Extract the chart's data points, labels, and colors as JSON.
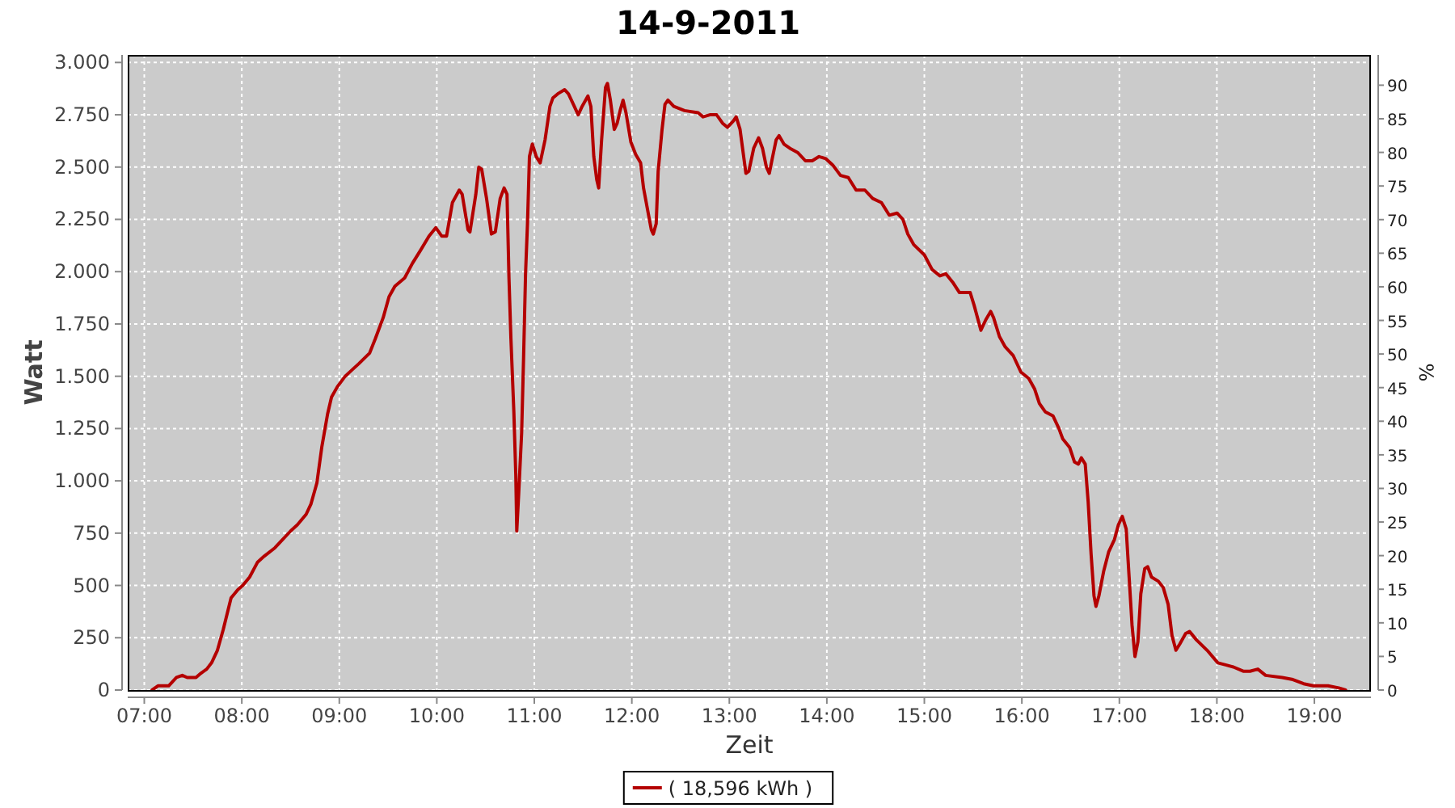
{
  "chart_data": {
    "type": "line",
    "title": "14-9-2011",
    "xlabel": "Zeit",
    "ylabel": "Watt",
    "y2label": "%",
    "x": [
      7.08,
      7.14,
      7.25,
      7.33,
      7.39,
      7.44,
      7.53,
      7.58,
      7.64,
      7.69,
      7.75,
      7.81,
      7.89,
      7.96,
      8.01,
      8.08,
      8.16,
      8.23,
      8.34,
      8.4,
      8.5,
      8.57,
      8.66,
      8.71,
      8.77,
      8.82,
      8.88,
      8.92,
      8.98,
      9.06,
      9.13,
      9.2,
      9.31,
      9.37,
      9.45,
      9.51,
      9.57,
      9.67,
      9.75,
      9.83,
      9.92,
      9.99,
      10.05,
      10.1,
      10.16,
      10.23,
      10.26,
      10.32,
      10.34,
      10.4,
      10.43,
      10.46,
      10.51,
      10.56,
      10.6,
      10.65,
      10.69,
      10.72,
      10.74,
      10.76,
      10.79,
      10.81,
      10.82,
      10.84,
      10.87,
      10.89,
      10.91,
      10.93,
      10.95,
      10.98,
      11.02,
      11.06,
      11.11,
      11.16,
      11.19,
      11.24,
      11.31,
      11.35,
      11.41,
      11.45,
      11.49,
      11.55,
      11.58,
      11.61,
      11.64,
      11.66,
      11.69,
      11.73,
      11.75,
      11.78,
      11.82,
      11.85,
      11.88,
      11.91,
      11.94,
      11.99,
      12.04,
      12.09,
      12.12,
      12.16,
      12.2,
      12.22,
      12.25,
      12.27,
      12.31,
      12.34,
      12.37,
      12.43,
      12.54,
      12.68,
      12.73,
      12.8,
      12.87,
      12.93,
      12.98,
      13.04,
      13.07,
      13.11,
      13.15,
      13.17,
      13.2,
      13.25,
      13.3,
      13.34,
      13.38,
      13.41,
      13.44,
      13.48,
      13.51,
      13.56,
      13.62,
      13.7,
      13.78,
      13.85,
      13.92,
      13.99,
      14.06,
      14.14,
      14.22,
      14.3,
      14.39,
      14.47,
      14.56,
      14.64,
      14.72,
      14.78,
      14.83,
      14.89,
      15.0,
      15.08,
      15.16,
      15.22,
      15.29,
      15.36,
      15.47,
      15.51,
      15.58,
      15.63,
      15.68,
      15.71,
      15.77,
      15.83,
      15.91,
      15.99,
      16.07,
      16.13,
      16.18,
      16.24,
      16.32,
      16.38,
      16.42,
      16.49,
      16.54,
      16.58,
      16.61,
      16.65,
      16.68,
      16.71,
      16.74,
      16.76,
      16.79,
      16.84,
      16.89,
      16.95,
      16.99,
      17.03,
      17.07,
      17.1,
      17.13,
      17.16,
      17.19,
      17.22,
      17.26,
      17.29,
      17.33,
      17.4,
      17.45,
      17.5,
      17.54,
      17.58,
      17.62,
      17.68,
      17.72,
      17.79,
      17.9,
      18.01,
      18.09,
      18.17,
      18.27,
      18.34,
      18.42,
      18.5,
      18.67,
      18.78,
      18.89,
      18.99,
      19.14,
      19.25,
      19.32
    ],
    "series": [
      {
        "name": "( 18,596 kWh )",
        "color": "#b40000",
        "values": [
          0,
          20,
          20,
          60,
          70,
          60,
          60,
          80,
          100,
          130,
          190,
          290,
          440,
          480,
          500,
          540,
          610,
          640,
          680,
          710,
          760,
          790,
          840,
          890,
          990,
          1160,
          1320,
          1400,
          1450,
          1500,
          1530,
          1560,
          1610,
          1680,
          1780,
          1880,
          1930,
          1970,
          2040,
          2100,
          2170,
          2210,
          2170,
          2170,
          2330,
          2390,
          2370,
          2200,
          2190,
          2370,
          2500,
          2490,
          2350,
          2180,
          2190,
          2350,
          2400,
          2370,
          1970,
          1680,
          1330,
          1030,
          760,
          940,
          1230,
          1590,
          1990,
          2230,
          2550,
          2610,
          2550,
          2520,
          2630,
          2790,
          2830,
          2850,
          2870,
          2850,
          2790,
          2750,
          2790,
          2840,
          2790,
          2550,
          2440,
          2400,
          2630,
          2880,
          2900,
          2820,
          2680,
          2710,
          2770,
          2820,
          2760,
          2620,
          2560,
          2520,
          2400,
          2300,
          2200,
          2180,
          2230,
          2480,
          2680,
          2800,
          2820,
          2790,
          2770,
          2760,
          2740,
          2750,
          2750,
          2710,
          2690,
          2720,
          2740,
          2680,
          2540,
          2470,
          2480,
          2590,
          2640,
          2590,
          2500,
          2470,
          2540,
          2630,
          2650,
          2610,
          2590,
          2570,
          2530,
          2530,
          2550,
          2540,
          2510,
          2460,
          2450,
          2390,
          2390,
          2350,
          2330,
          2270,
          2280,
          2250,
          2180,
          2130,
          2080,
          2010,
          1980,
          1990,
          1950,
          1900,
          1900,
          1840,
          1720,
          1770,
          1810,
          1780,
          1690,
          1640,
          1600,
          1520,
          1490,
          1440,
          1370,
          1330,
          1310,
          1250,
          1200,
          1160,
          1090,
          1080,
          1110,
          1080,
          900,
          650,
          450,
          400,
          450,
          570,
          660,
          720,
          790,
          830,
          770,
          540,
          310,
          160,
          230,
          460,
          580,
          590,
          540,
          520,
          490,
          410,
          260,
          190,
          220,
          270,
          280,
          240,
          190,
          130,
          120,
          110,
          90,
          90,
          100,
          70,
          60,
          50,
          30,
          20,
          20,
          10,
          0
        ]
      }
    ],
    "xlim": [
      6.83,
      19.58
    ],
    "xticks": [
      {
        "value": 7,
        "label": "07:00"
      },
      {
        "value": 8,
        "label": "08:00"
      },
      {
        "value": 9,
        "label": "09:00"
      },
      {
        "value": 10,
        "label": "10:00"
      },
      {
        "value": 11,
        "label": "11:00"
      },
      {
        "value": 12,
        "label": "12:00"
      },
      {
        "value": 13,
        "label": "13:00"
      },
      {
        "value": 14,
        "label": "14:00"
      },
      {
        "value": 15,
        "label": "15:00"
      },
      {
        "value": 16,
        "label": "16:00"
      },
      {
        "value": 17,
        "label": "17:00"
      },
      {
        "value": 18,
        "label": "18:00"
      },
      {
        "value": 19,
        "label": "19:00"
      }
    ],
    "ylim": [
      0,
      3036
    ],
    "yticks": [
      0,
      250,
      500,
      750,
      {
        "value": 1000,
        "label": "1.000"
      },
      {
        "value": 1250,
        "label": "1.250"
      },
      {
        "value": 1500,
        "label": "1.500"
      },
      {
        "value": 1750,
        "label": "1.750"
      },
      {
        "value": 2000,
        "label": "2.000"
      },
      {
        "value": 2250,
        "label": "2.250"
      },
      {
        "value": 2500,
        "label": "2.500"
      },
      {
        "value": 2750,
        "label": "2.750"
      },
      {
        "value": 3000,
        "label": "3.000"
      }
    ],
    "y2lim": [
      0,
      94.5
    ],
    "y2ticks": [
      0,
      5,
      10,
      15,
      20,
      25,
      30,
      35,
      40,
      45,
      50,
      55,
      60,
      65,
      70,
      75,
      80,
      85,
      90
    ],
    "grid": true,
    "legend": "bottom"
  }
}
